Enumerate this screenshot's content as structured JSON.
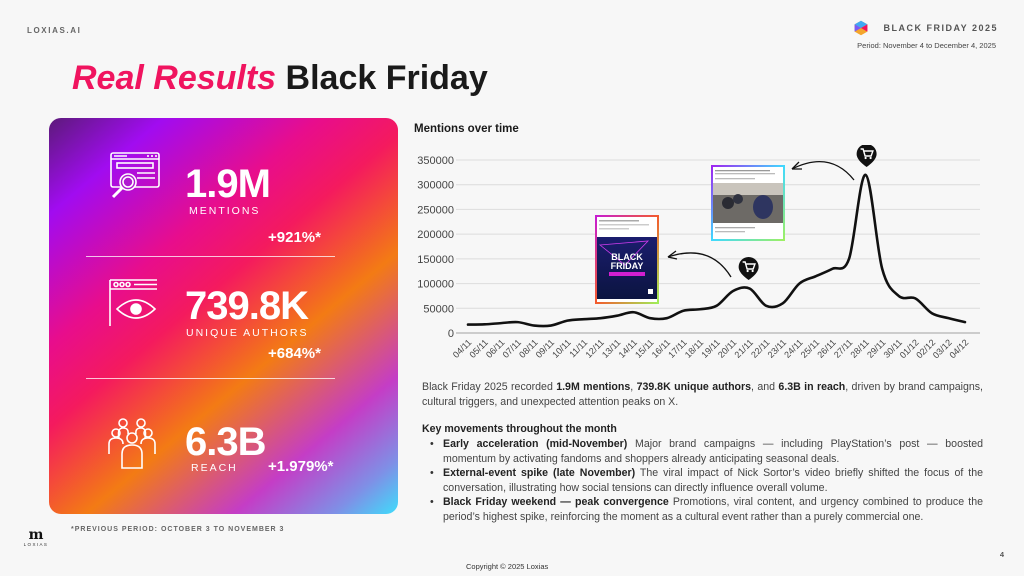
{
  "header": {
    "brand": "LOXIAS.AI",
    "event_title": "BLACK FRIDAY 2025",
    "period": "Period: November 4 to December 4, 2025",
    "title_accent": "Real Results",
    "title_rest": "Black Friday"
  },
  "kpis": [
    {
      "icon": "web-search-icon",
      "value": "1.9M",
      "label": "MENTIONS",
      "delta": "+921%*"
    },
    {
      "icon": "browser-eye-icon",
      "value": "739.8K",
      "label": "UNIQUE AUTHORS",
      "delta": "+684%*"
    },
    {
      "icon": "people-group-icon",
      "value": "6.3B",
      "label": "REACH",
      "delta": "+1.979%*"
    }
  ],
  "footnote": "*PREVIOUS PERIOD: OCTOBER 3 TO NOVEMBER 3",
  "footer_logo": {
    "mark": "m",
    "word": "LOXIAS"
  },
  "chart": {
    "title": "Mentions over time",
    "annotations": [
      {
        "type": "post-thumbnail",
        "label": "PlayStation Black Friday post",
        "thumb_text": "BLACK FRIDAY",
        "points_to": "21/11"
      },
      {
        "type": "post-thumbnail",
        "label": "Nick Sortor video post",
        "points_to": "28/11"
      },
      {
        "type": "cart-marker",
        "at": "21/11"
      },
      {
        "type": "cart-marker",
        "at": "28/11"
      }
    ]
  },
  "chart_data": {
    "type": "line",
    "title": "Mentions over time",
    "xlabel": "",
    "ylabel": "",
    "ylim": [
      0,
      350000
    ],
    "yticks": [
      0,
      50000,
      100000,
      150000,
      200000,
      250000,
      300000,
      350000
    ],
    "grid": true,
    "legend": "none",
    "categories": [
      "04/11",
      "05/11",
      "06/11",
      "07/11",
      "08/11",
      "09/11",
      "10/11",
      "11/11",
      "12/11",
      "13/11",
      "14/11",
      "15/11",
      "16/11",
      "17/11",
      "18/11",
      "19/11",
      "20/11",
      "21/11",
      "22/11",
      "23/11",
      "24/11",
      "25/11",
      "26/11",
      "27/11",
      "28/11",
      "29/11",
      "30/11",
      "01/12",
      "02/12",
      "03/12",
      "04/12"
    ],
    "series": [
      {
        "name": "Mentions",
        "color": "#111111",
        "values": [
          17000,
          17500,
          20000,
          22000,
          15000,
          15000,
          25000,
          28000,
          30000,
          35000,
          42000,
          30000,
          30000,
          45000,
          48000,
          55000,
          85000,
          90000,
          55000,
          60000,
          100000,
          115000,
          130000,
          150000,
          320000,
          130000,
          75000,
          70000,
          40000,
          30000,
          22000
        ]
      }
    ]
  },
  "summary": {
    "intro_1": "Black Friday 2025 recorded ",
    "bold_1": "1.9M mentions",
    "sep_1": ", ",
    "bold_2": "739.8K unique authors",
    "sep_2": ", and ",
    "bold_3": "6.3B in reach",
    "intro_2": ", driven by brand campaigns, cultural triggers, and unexpected attention peaks on X."
  },
  "key_movements": {
    "title": "Key movements throughout the month",
    "items": [
      {
        "heading": "Early acceleration (mid-November)",
        "text": " Major brand campaigns — including PlayStation’s post — boosted momentum by activating fandoms and shoppers already anticipating seasonal deals."
      },
      {
        "heading": "External-event spike (late November)",
        "text": " The viral impact of Nick Sortor’s video briefly shifted the focus of the conversation, illustrating how social tensions can directly influence overall volume."
      },
      {
        "heading": "Black Friday weekend — peak convergence",
        "text": " Promotions, viral content, and urgency combined to produce the period’s highest spike, reinforcing the moment as a cultural event rather than a purely commercial one."
      }
    ]
  },
  "footer": {
    "copyright": "Copyright © 2025 Loxias",
    "page_number": "4"
  },
  "colors": {
    "accent": "#f0145f",
    "background": "#f7f7f7",
    "line": "#111111"
  }
}
